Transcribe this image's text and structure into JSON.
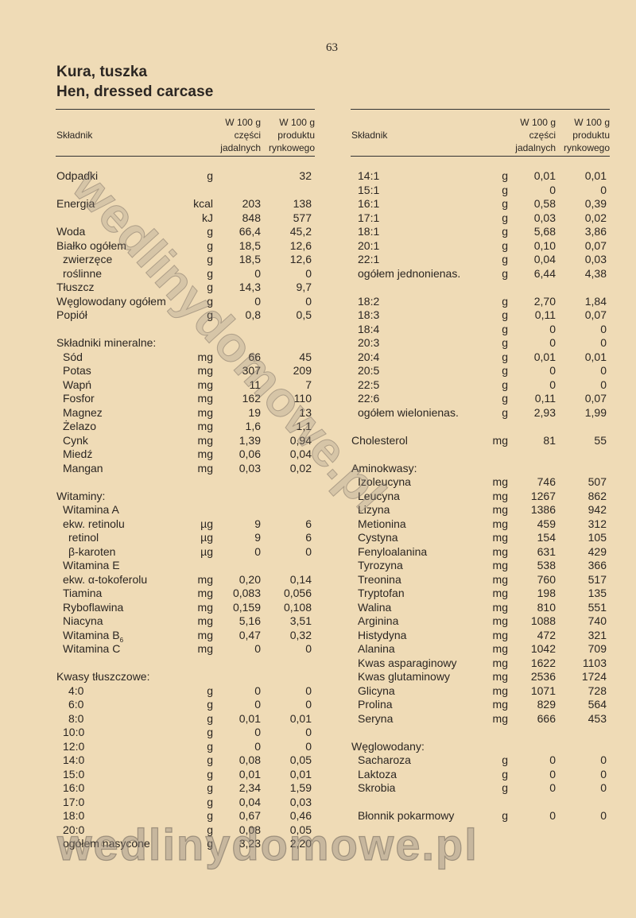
{
  "page_number": "63",
  "title_pl": "Kura, tuszka",
  "title_en": "Hen, dressed carcase",
  "header": {
    "ingredient": "Składnik",
    "col1": "W 100 g\nczęści\njadalnych",
    "col2": "W 100 g\nproduktu\nrynkowego"
  },
  "watermark": "wedlinydomowe.pl",
  "left_rows": [
    {
      "n": "Odpadki",
      "u": "g",
      "a": "",
      "b": "32",
      "i": 0
    },
    {},
    {
      "n": "Energia",
      "u": "kcal",
      "a": "203",
      "b": "138",
      "i": 0
    },
    {
      "n": "",
      "u": "kJ",
      "a": "848",
      "b": "577",
      "i": 0
    },
    {
      "n": "Woda",
      "u": "g",
      "a": "66,4",
      "b": "45,2",
      "i": 0
    },
    {
      "n": "Białko ogółem",
      "u": "g",
      "a": "18,5",
      "b": "12,6",
      "i": 0
    },
    {
      "n": "zwierzęce",
      "u": "g",
      "a": "18,5",
      "b": "12,6",
      "i": 1
    },
    {
      "n": "roślinne",
      "u": "g",
      "a": "0",
      "b": "0",
      "i": 1
    },
    {
      "n": "Tłuszcz",
      "u": "g",
      "a": "14,3",
      "b": "9,7",
      "i": 0
    },
    {
      "n": "Węglowodany ogółem",
      "u": "g",
      "a": "0",
      "b": "0",
      "i": 0
    },
    {
      "n": "Popiół",
      "u": "g",
      "a": "0,8",
      "b": "0,5",
      "i": 0
    },
    {},
    {
      "n": "Składniki mineralne:",
      "u": "",
      "a": "",
      "b": "",
      "i": 0
    },
    {
      "n": "Sód",
      "u": "mg",
      "a": "66",
      "b": "45",
      "i": 1
    },
    {
      "n": "Potas",
      "u": "mg",
      "a": "307",
      "b": "209",
      "i": 1
    },
    {
      "n": "Wapń",
      "u": "mg",
      "a": "11",
      "b": "7",
      "i": 1
    },
    {
      "n": "Fosfor",
      "u": "mg",
      "a": "162",
      "b": "110",
      "i": 1
    },
    {
      "n": "Magnez",
      "u": "mg",
      "a": "19",
      "b": "13",
      "i": 1
    },
    {
      "n": "Żelazo",
      "u": "mg",
      "a": "1,6",
      "b": "1,1",
      "i": 1
    },
    {
      "n": "Cynk",
      "u": "mg",
      "a": "1,39",
      "b": "0,94",
      "i": 1
    },
    {
      "n": "Miedź",
      "u": "mg",
      "a": "0,06",
      "b": "0,04",
      "i": 1
    },
    {
      "n": "Mangan",
      "u": "mg",
      "a": "0,03",
      "b": "0,02",
      "i": 1
    },
    {},
    {
      "n": "Witaminy:",
      "u": "",
      "a": "",
      "b": "",
      "i": 0
    },
    {
      "n": "Witamina A",
      "u": "",
      "a": "",
      "b": "",
      "i": 1
    },
    {
      "n": "ekw. retinolu",
      "u": "µg",
      "a": "9",
      "b": "6",
      "i": 1
    },
    {
      "n": "retinol",
      "u": "µg",
      "a": "9",
      "b": "6",
      "i": 2
    },
    {
      "n": "β-karoten",
      "u": "µg",
      "a": "0",
      "b": "0",
      "i": 2
    },
    {
      "n": "Witamina E",
      "u": "",
      "a": "",
      "b": "",
      "i": 1
    },
    {
      "n": "ekw. α-tokoferolu",
      "u": "mg",
      "a": "0,20",
      "b": "0,14",
      "i": 1
    },
    {
      "n": "Tiamina",
      "u": "mg",
      "a": "0,083",
      "b": "0,056",
      "i": 1
    },
    {
      "n": "Ryboflawina",
      "u": "mg",
      "a": "0,159",
      "b": "0,108",
      "i": 1
    },
    {
      "n": "Niacyna",
      "u": "mg",
      "a": "5,16",
      "b": "3,51",
      "i": 1
    },
    {
      "n": "Witamina B",
      "sub": "6",
      "u": "mg",
      "a": "0,47",
      "b": "0,32",
      "i": 1
    },
    {
      "n": "Witamina C",
      "u": "mg",
      "a": "0",
      "b": "0",
      "i": 1
    },
    {},
    {
      "n": "Kwasy tłuszczowe:",
      "u": "",
      "a": "",
      "b": "",
      "i": 0
    },
    {
      "n": "4:0",
      "u": "g",
      "a": "0",
      "b": "0",
      "i": 2
    },
    {
      "n": "6:0",
      "u": "g",
      "a": "0",
      "b": "0",
      "i": 2
    },
    {
      "n": "8:0",
      "u": "g",
      "a": "0,01",
      "b": "0,01",
      "i": 2
    },
    {
      "n": "10:0",
      "u": "g",
      "a": "0",
      "b": "0",
      "i": 1
    },
    {
      "n": "12:0",
      "u": "g",
      "a": "0",
      "b": "0",
      "i": 1
    },
    {
      "n": "14:0",
      "u": "g",
      "a": "0,08",
      "b": "0,05",
      "i": 1
    },
    {
      "n": "15:0",
      "u": "g",
      "a": "0,01",
      "b": "0,01",
      "i": 1
    },
    {
      "n": "16:0",
      "u": "g",
      "a": "2,34",
      "b": "1,59",
      "i": 1
    },
    {
      "n": "17:0",
      "u": "g",
      "a": "0,04",
      "b": "0,03",
      "i": 1
    },
    {
      "n": "18:0",
      "u": "g",
      "a": "0,67",
      "b": "0,46",
      "i": 1
    },
    {
      "n": "20:0",
      "u": "g",
      "a": "0,08",
      "b": "0,05",
      "i": 1
    },
    {
      "n": "ogółem nasycone",
      "u": "g",
      "a": "3,23",
      "b": "2,20",
      "i": 1
    }
  ],
  "right_rows": [
    {
      "n": "14:1",
      "u": "g",
      "a": "0,01",
      "b": "0,01",
      "i": 1
    },
    {
      "n": "15:1",
      "u": "g",
      "a": "0",
      "b": "0",
      "i": 1
    },
    {
      "n": "16:1",
      "u": "g",
      "a": "0,58",
      "b": "0,39",
      "i": 1
    },
    {
      "n": "17:1",
      "u": "g",
      "a": "0,03",
      "b": "0,02",
      "i": 1
    },
    {
      "n": "18:1",
      "u": "g",
      "a": "5,68",
      "b": "3,86",
      "i": 1
    },
    {
      "n": "20:1",
      "u": "g",
      "a": "0,10",
      "b": "0,07",
      "i": 1
    },
    {
      "n": "22:1",
      "u": "g",
      "a": "0,04",
      "b": "0,03",
      "i": 1
    },
    {
      "n": "ogółem jednonienas.",
      "u": "g",
      "a": "6,44",
      "b": "4,38",
      "i": 1
    },
    {},
    {
      "n": "18:2",
      "u": "g",
      "a": "2,70",
      "b": "1,84",
      "i": 1
    },
    {
      "n": "18:3",
      "u": "g",
      "a": "0,11",
      "b": "0,07",
      "i": 1
    },
    {
      "n": "18:4",
      "u": "g",
      "a": "0",
      "b": "0",
      "i": 1
    },
    {
      "n": "20:3",
      "u": "g",
      "a": "0",
      "b": "0",
      "i": 1
    },
    {
      "n": "20:4",
      "u": "g",
      "a": "0,01",
      "b": "0,01",
      "i": 1
    },
    {
      "n": "20:5",
      "u": "g",
      "a": "0",
      "b": "0",
      "i": 1
    },
    {
      "n": "22:5",
      "u": "g",
      "a": "0",
      "b": "0",
      "i": 1
    },
    {
      "n": "22:6",
      "u": "g",
      "a": "0,11",
      "b": "0,07",
      "i": 1
    },
    {
      "n": "ogółem wielonienas.",
      "u": "g",
      "a": "2,93",
      "b": "1,99",
      "i": 1
    },
    {},
    {
      "n": "Cholesterol",
      "u": "mg",
      "a": "81",
      "b": "55",
      "i": 0
    },
    {},
    {
      "n": "Aminokwasy:",
      "u": "",
      "a": "",
      "b": "",
      "i": 0
    },
    {
      "n": "Izoleucyna",
      "u": "mg",
      "a": "746",
      "b": "507",
      "i": 1
    },
    {
      "n": "Leucyna",
      "u": "mg",
      "a": "1267",
      "b": "862",
      "i": 1
    },
    {
      "n": "Lizyna",
      "u": "mg",
      "a": "1386",
      "b": "942",
      "i": 1
    },
    {
      "n": "Metionina",
      "u": "mg",
      "a": "459",
      "b": "312",
      "i": 1
    },
    {
      "n": "Cystyna",
      "u": "mg",
      "a": "154",
      "b": "105",
      "i": 1
    },
    {
      "n": "Fenyloalanina",
      "u": "mg",
      "a": "631",
      "b": "429",
      "i": 1
    },
    {
      "n": "Tyrozyna",
      "u": "mg",
      "a": "538",
      "b": "366",
      "i": 1
    },
    {
      "n": "Treonina",
      "u": "mg",
      "a": "760",
      "b": "517",
      "i": 1
    },
    {
      "n": "Tryptofan",
      "u": "mg",
      "a": "198",
      "b": "135",
      "i": 1
    },
    {
      "n": "Walina",
      "u": "mg",
      "a": "810",
      "b": "551",
      "i": 1
    },
    {
      "n": "Arginina",
      "u": "mg",
      "a": "1088",
      "b": "740",
      "i": 1
    },
    {
      "n": "Histydyna",
      "u": "mg",
      "a": "472",
      "b": "321",
      "i": 1
    },
    {
      "n": "Alanina",
      "u": "mg",
      "a": "1042",
      "b": "709",
      "i": 1
    },
    {
      "n": "Kwas asparaginowy",
      "u": "mg",
      "a": "1622",
      "b": "1103",
      "i": 1
    },
    {
      "n": "Kwas glutaminowy",
      "u": "mg",
      "a": "2536",
      "b": "1724",
      "i": 1
    },
    {
      "n": "Glicyna",
      "u": "mg",
      "a": "1071",
      "b": "728",
      "i": 1
    },
    {
      "n": "Prolina",
      "u": "mg",
      "a": "829",
      "b": "564",
      "i": 1
    },
    {
      "n": "Seryna",
      "u": "mg",
      "a": "666",
      "b": "453",
      "i": 1
    },
    {},
    {
      "n": "Węglowodany:",
      "u": "",
      "a": "",
      "b": "",
      "i": 0
    },
    {
      "n": "Sacharoza",
      "u": "g",
      "a": "0",
      "b": "0",
      "i": 1
    },
    {
      "n": "Laktoza",
      "u": "g",
      "a": "0",
      "b": "0",
      "i": 1
    },
    {
      "n": "Skrobia",
      "u": "g",
      "a": "0",
      "b": "0",
      "i": 1
    },
    {},
    {
      "n": "Błonnik pokarmowy",
      "u": "g",
      "a": "0",
      "b": "0",
      "i": 1
    }
  ]
}
